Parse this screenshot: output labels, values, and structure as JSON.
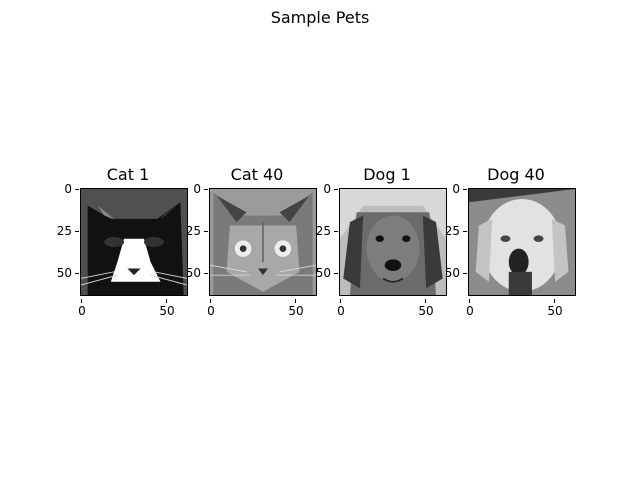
{
  "figure": {
    "title": "Sample Pets"
  },
  "panels": [
    {
      "title": "Cat 1",
      "image": "black-and-white-cat-face-grayscale",
      "yticks": [
        "0",
        "25",
        "50"
      ],
      "xticks": [
        "0",
        "50"
      ]
    },
    {
      "title": "Cat 40",
      "image": "tabby-cat-face-grayscale",
      "yticks": [
        "0",
        "25",
        "50"
      ],
      "xticks": [
        "0",
        "50"
      ]
    },
    {
      "title": "Dog 1",
      "image": "golden-retriever-face-grayscale",
      "yticks": [
        "0",
        "25",
        "50"
      ],
      "xticks": [
        "0",
        "50"
      ]
    },
    {
      "title": "Dog 40",
      "image": "light-dog-face-grayscale",
      "yticks": [
        "0",
        "25",
        "50"
      ],
      "xticks": [
        "0",
        "50"
      ]
    }
  ]
}
